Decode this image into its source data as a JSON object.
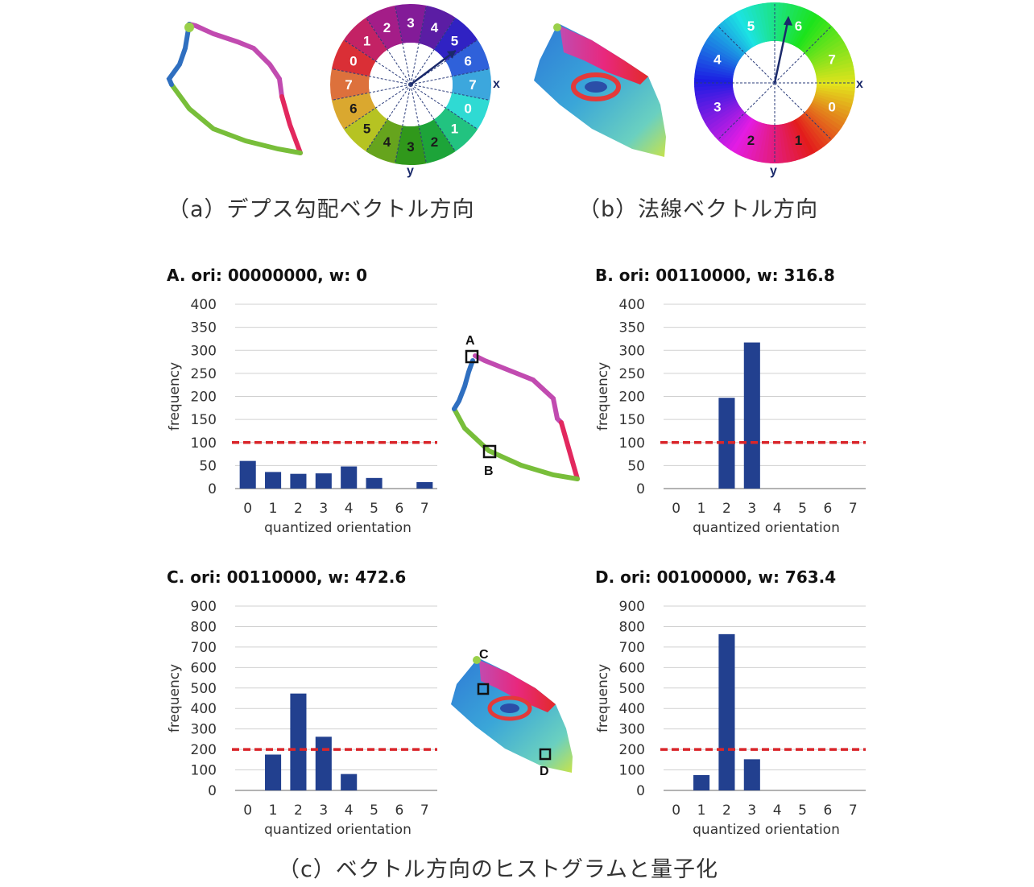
{
  "captions": {
    "a": "（a）デプス勾配ベクトル方向",
    "b": "（b）法線ベクトル方向",
    "c": "（c）ベクトル方向のヒストグラムと量子化"
  },
  "wheel_a": {
    "outer_labels": [
      "3",
      "4",
      "5",
      "6",
      "7",
      "0",
      "1",
      "2",
      "3",
      "4",
      "5",
      "6",
      "7",
      "0",
      "1",
      "2"
    ],
    "axis_x": "x",
    "axis_y": "y"
  },
  "wheel_b": {
    "labels": [
      "0",
      "1",
      "2",
      "3",
      "4",
      "5",
      "6",
      "7"
    ],
    "axis_x": "x",
    "axis_y": "y"
  },
  "markers": [
    "A",
    "B",
    "C",
    "D"
  ],
  "colors": {
    "bar": "#22408f",
    "threshold": "#d9262b",
    "grid": "#d0d0d0"
  },
  "chart_data": [
    {
      "type": "bar",
      "title": "A.  ori: 00000000, w: 0",
      "categories": [
        "0",
        "1",
        "2",
        "3",
        "4",
        "5",
        "6",
        "7"
      ],
      "values": [
        60,
        36,
        32,
        33,
        48,
        23,
        0,
        14
      ],
      "xlabel": "quantized orientation",
      "ylabel": "frequency",
      "ylim": [
        0,
        400
      ],
      "yticks": [
        "0",
        "50",
        "100",
        "150",
        "200",
        "250",
        "300",
        "350",
        "400"
      ],
      "threshold": 100,
      "grid": true
    },
    {
      "type": "bar",
      "title": "B.  ori: 00110000, w: 316.8",
      "categories": [
        "0",
        "1",
        "2",
        "3",
        "4",
        "5",
        "6",
        "7"
      ],
      "values": [
        0,
        0,
        197,
        317,
        0,
        0,
        0,
        0
      ],
      "xlabel": "quantized orientation",
      "ylabel": "frequency",
      "ylim": [
        0,
        400
      ],
      "yticks": [
        "0",
        "50",
        "100",
        "150",
        "200",
        "250",
        "300",
        "350",
        "400"
      ],
      "threshold": 100,
      "grid": true
    },
    {
      "type": "bar",
      "title": "C.  ori: 00110000, w: 472.6",
      "categories": [
        "0",
        "1",
        "2",
        "3",
        "4",
        "5",
        "6",
        "7"
      ],
      "values": [
        0,
        175,
        473,
        262,
        80,
        0,
        0,
        0
      ],
      "xlabel": "quantized orientation",
      "ylabel": "frequency",
      "ylim": [
        0,
        900
      ],
      "yticks": [
        "0",
        "100",
        "200",
        "300",
        "400",
        "500",
        "600",
        "700",
        "800",
        "900"
      ],
      "threshold": 200,
      "grid": true
    },
    {
      "type": "bar",
      "title": "D.  ori: 00100000, w: 763.4",
      "categories": [
        "0",
        "1",
        "2",
        "3",
        "4",
        "5",
        "6",
        "7"
      ],
      "values": [
        0,
        75,
        763,
        152,
        0,
        0,
        0,
        0
      ],
      "xlabel": "quantized orientation",
      "ylabel": "frequency",
      "ylim": [
        0,
        900
      ],
      "yticks": [
        "0",
        "100",
        "200",
        "300",
        "400",
        "500",
        "600",
        "700",
        "800",
        "900"
      ],
      "threshold": 200,
      "grid": true
    }
  ]
}
